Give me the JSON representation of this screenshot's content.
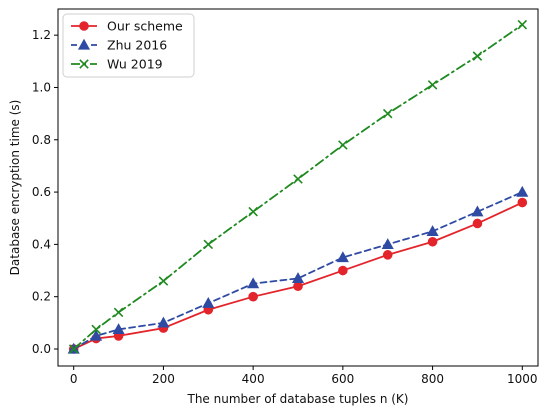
{
  "chart_data": {
    "type": "line",
    "title": "",
    "xlabel": "The number of database tuples n (K)",
    "ylabel": "Database encryption  time (s)",
    "xlim": [
      -35,
      1035
    ],
    "ylim": [
      -0.065,
      1.3
    ],
    "xticks": [
      0,
      200,
      400,
      600,
      800,
      1000
    ],
    "yticks": [
      0.0,
      0.2,
      0.4,
      0.6,
      0.8,
      1.0,
      1.2
    ],
    "xtick_labels": [
      "0",
      "200",
      "400",
      "600",
      "800",
      "1000"
    ],
    "ytick_labels": [
      "0.0",
      "0.2",
      "0.4",
      "0.6",
      "0.8",
      "1.0",
      "1.2"
    ],
    "grid": false,
    "legend_position": "top-left",
    "series": [
      {
        "name": "Our scheme",
        "color": "#e3242b",
        "marker": "circle",
        "line_style": "solid",
        "x": [
          0,
          50,
          100,
          200,
          300,
          400,
          500,
          600,
          700,
          800,
          900,
          1000
        ],
        "y": [
          0.0,
          0.04,
          0.05,
          0.08,
          0.15,
          0.2,
          0.24,
          0.3,
          0.36,
          0.41,
          0.48,
          0.56
        ]
      },
      {
        "name": "Zhu 2016",
        "color": "#2f4aa3",
        "marker": "triangle",
        "line_style": "dashed",
        "x": [
          0,
          50,
          100,
          200,
          300,
          400,
          500,
          600,
          700,
          800,
          900,
          1000
        ],
        "y": [
          0.0,
          0.05,
          0.075,
          0.1,
          0.175,
          0.25,
          0.27,
          0.35,
          0.4,
          0.45,
          0.525,
          0.6
        ]
      },
      {
        "name": "Wu 2019",
        "color": "#1f8a1f",
        "marker": "x",
        "line_style": "dashdot",
        "x": [
          0,
          50,
          100,
          200,
          300,
          400,
          500,
          600,
          700,
          800,
          900,
          1000
        ],
        "y": [
          0.0,
          0.075,
          0.14,
          0.26,
          0.4,
          0.525,
          0.65,
          0.78,
          0.9,
          1.01,
          1.12,
          1.24
        ]
      }
    ]
  }
}
